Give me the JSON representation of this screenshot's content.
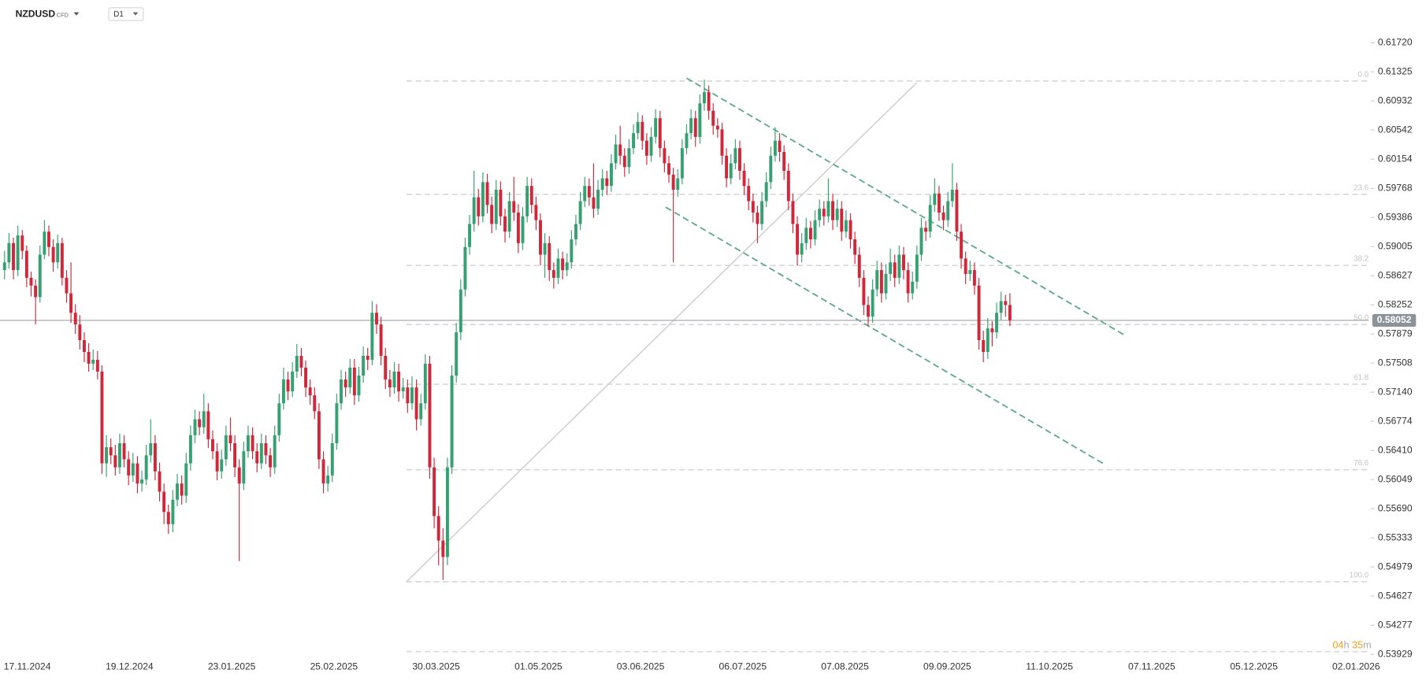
{
  "symbol": "NZDUSD",
  "instrument_type": "CFD",
  "timeframe": "D1",
  "timer": [
    "04",
    "h",
    "35",
    "m"
  ],
  "chart_data": {
    "type": "candlestick",
    "log_scale": true,
    "up_color": "#37a072",
    "down_color": "#d0283a",
    "ylim": [
      0.53875,
      0.6193
    ],
    "yticks": [
      {
        "value": 0.6172,
        "label": "0.61720"
      },
      0.61325,
      0.60932,
      0.60542,
      0.60154,
      0.59768,
      0.59386,
      0.59005,
      0.58627,
      0.58252,
      0.57879,
      0.57508,
      {
        "value": 0.5714,
        "label": "0.57140"
      },
      0.56774,
      {
        "value": 0.5641,
        "label": "0.56410"
      },
      0.56049,
      {
        "value": 0.5569,
        "label": "0.55690"
      },
      0.55333,
      0.54979,
      0.54627,
      0.54277,
      0.53929
    ],
    "x_labels": [
      "17.11.2024",
      "19.12.2024",
      "23.01.2025",
      "25.02.2025",
      "30.03.2025",
      "01.05.2025",
      "03.06.2025",
      "06.07.2025",
      "07.08.2025",
      "09.09.2025",
      "11.10.2025",
      "07.11.2025",
      "05.12.2025",
      "02.01.2026"
    ],
    "last_price": 0.58052,
    "fib_levels": [
      {
        "label": "0.0",
        "price": 0.612
      },
      {
        "label": "23.6",
        "price": 0.5969
      },
      {
        "label": "38.2",
        "price": 0.5876
      },
      {
        "label": "50.0",
        "price": 0.58
      },
      {
        "label": "61.8",
        "price": 0.5724
      },
      {
        "label": "78.6",
        "price": 0.5617
      },
      {
        "label": "100.0",
        "price": 0.548
      }
    ],
    "ohlc": [
      [
        0.587,
        0.5895,
        0.5858,
        0.588
      ],
      [
        0.588,
        0.5918,
        0.5872,
        0.5905
      ],
      [
        0.5905,
        0.5912,
        0.5858,
        0.587
      ],
      [
        0.587,
        0.5928,
        0.5862,
        0.5915
      ],
      [
        0.5915,
        0.5922,
        0.5884,
        0.5895
      ],
      [
        0.5895,
        0.5902,
        0.5848,
        0.586
      ],
      [
        0.586,
        0.5868,
        0.5836,
        0.585
      ],
      [
        0.585,
        0.5858,
        0.58,
        0.5835
      ],
      [
        0.5835,
        0.5902,
        0.5828,
        0.589
      ],
      [
        0.589,
        0.5935,
        0.5884,
        0.592
      ],
      [
        0.592,
        0.5928,
        0.5888,
        0.59
      ],
      [
        0.59,
        0.591,
        0.5868,
        0.588
      ],
      [
        0.588,
        0.5916,
        0.5872,
        0.5905
      ],
      [
        0.5905,
        0.5912,
        0.585,
        0.586
      ],
      [
        0.586,
        0.587,
        0.5828,
        0.584
      ],
      [
        0.584,
        0.588,
        0.5802,
        0.5815
      ],
      [
        0.5815,
        0.5826,
        0.5788,
        0.58
      ],
      [
        0.58,
        0.5812,
        0.5768,
        0.578
      ],
      [
        0.578,
        0.579,
        0.5752,
        0.5765
      ],
      [
        0.5765,
        0.5776,
        0.574,
        0.575
      ],
      [
        0.575,
        0.5768,
        0.5742,
        0.5755
      ],
      [
        0.5755,
        0.5766,
        0.573,
        0.574
      ],
      [
        0.574,
        0.5748,
        0.5612,
        0.5625
      ],
      [
        0.5625,
        0.566,
        0.5608,
        0.5645
      ],
      [
        0.5645,
        0.5656,
        0.5624,
        0.5635
      ],
      [
        0.5635,
        0.5648,
        0.561,
        0.562
      ],
      [
        0.562,
        0.5662,
        0.5612,
        0.565
      ],
      [
        0.565,
        0.566,
        0.562,
        0.563
      ],
      [
        0.563,
        0.564,
        0.5598,
        0.561
      ],
      [
        0.561,
        0.5638,
        0.5602,
        0.5625
      ],
      [
        0.5625,
        0.5634,
        0.5588,
        0.56
      ],
      [
        0.56,
        0.5616,
        0.559,
        0.5605
      ],
      [
        0.5605,
        0.5648,
        0.5598,
        0.5635
      ],
      [
        0.5635,
        0.568,
        0.5626,
        0.565
      ],
      [
        0.565,
        0.566,
        0.5604,
        0.5615
      ],
      [
        0.5615,
        0.5626,
        0.5578,
        0.559
      ],
      [
        0.559,
        0.56,
        0.555,
        0.5565
      ],
      [
        0.5565,
        0.5574,
        0.5538,
        0.555
      ],
      [
        0.555,
        0.5592,
        0.554,
        0.558
      ],
      [
        0.558,
        0.5612,
        0.5572,
        0.56
      ],
      [
        0.56,
        0.561,
        0.5574,
        0.5585
      ],
      [
        0.5585,
        0.5638,
        0.5576,
        0.5625
      ],
      [
        0.5625,
        0.5672,
        0.5616,
        0.566
      ],
      [
        0.566,
        0.5692,
        0.565,
        0.568
      ],
      [
        0.568,
        0.569,
        0.566,
        0.567
      ],
      [
        0.567,
        0.5712,
        0.5662,
        0.569
      ],
      [
        0.569,
        0.57,
        0.5644,
        0.5655
      ],
      [
        0.5655,
        0.5666,
        0.563,
        0.564
      ],
      [
        0.564,
        0.565,
        0.5604,
        0.5615
      ],
      [
        0.5615,
        0.5642,
        0.5606,
        0.563
      ],
      [
        0.563,
        0.5672,
        0.5622,
        0.566
      ],
      [
        0.566,
        0.5682,
        0.564,
        0.565
      ],
      [
        0.565,
        0.566,
        0.5608,
        0.562
      ],
      [
        0.562,
        0.563,
        0.5505,
        0.56
      ],
      [
        0.56,
        0.5652,
        0.5592,
        0.564
      ],
      [
        0.564,
        0.5672,
        0.5632,
        0.566
      ],
      [
        0.566,
        0.567,
        0.563,
        0.564
      ],
      [
        0.564,
        0.565,
        0.5614,
        0.5625
      ],
      [
        0.5625,
        0.5662,
        0.5618,
        0.565
      ],
      [
        0.565,
        0.566,
        0.5624,
        0.5635
      ],
      [
        0.5635,
        0.5644,
        0.5608,
        0.562
      ],
      [
        0.562,
        0.5672,
        0.5612,
        0.566
      ],
      [
        0.566,
        0.5712,
        0.5652,
        0.57
      ],
      [
        0.57,
        0.5745,
        0.5692,
        0.573
      ],
      [
        0.573,
        0.574,
        0.5704,
        0.5715
      ],
      [
        0.5715,
        0.5752,
        0.5708,
        0.574
      ],
      [
        0.574,
        0.5775,
        0.5732,
        0.576
      ],
      [
        0.576,
        0.577,
        0.5734,
        0.5745
      ],
      [
        0.5745,
        0.5754,
        0.5708,
        0.572
      ],
      [
        0.572,
        0.573,
        0.5698,
        0.571
      ],
      [
        0.571,
        0.572,
        0.568,
        0.569
      ],
      [
        0.569,
        0.57,
        0.5618,
        0.563
      ],
      [
        0.563,
        0.564,
        0.5588,
        0.56
      ],
      [
        0.56,
        0.5622,
        0.559,
        0.561
      ],
      [
        0.561,
        0.5662,
        0.5602,
        0.565
      ],
      [
        0.565,
        0.5712,
        0.5642,
        0.57
      ],
      [
        0.57,
        0.5742,
        0.5692,
        0.573
      ],
      [
        0.573,
        0.574,
        0.5708,
        0.572
      ],
      [
        0.572,
        0.5756,
        0.5712,
        0.5745
      ],
      [
        0.5745,
        0.5756,
        0.5698,
        0.571
      ],
      [
        0.571,
        0.5746,
        0.5702,
        0.5735
      ],
      [
        0.5735,
        0.5772,
        0.5726,
        0.576
      ],
      [
        0.576,
        0.577,
        0.5742,
        0.5755
      ],
      [
        0.5755,
        0.583,
        0.5748,
        0.5815
      ],
      [
        0.5815,
        0.5826,
        0.5788,
        0.58
      ],
      [
        0.58,
        0.581,
        0.5748,
        0.576
      ],
      [
        0.576,
        0.577,
        0.5718,
        0.573
      ],
      [
        0.573,
        0.5742,
        0.5708,
        0.572
      ],
      [
        0.572,
        0.5752,
        0.5712,
        0.574
      ],
      [
        0.574,
        0.575,
        0.5702,
        0.5715
      ],
      [
        0.5715,
        0.5732,
        0.5706,
        0.572
      ],
      [
        0.572,
        0.573,
        0.5688,
        0.57
      ],
      [
        0.57,
        0.5734,
        0.5692,
        0.572
      ],
      [
        0.572,
        0.573,
        0.5666,
        0.568
      ],
      [
        0.568,
        0.5712,
        0.5672,
        0.57
      ],
      [
        0.57,
        0.5762,
        0.5692,
        0.575
      ],
      [
        0.575,
        0.576,
        0.5606,
        0.562
      ],
      [
        0.562,
        0.5632,
        0.5545,
        0.556
      ],
      [
        0.556,
        0.5572,
        0.55,
        0.553
      ],
      [
        0.553,
        0.5545,
        0.5482,
        0.551
      ],
      [
        0.551,
        0.5632,
        0.55,
        0.562
      ],
      [
        0.562,
        0.5748,
        0.5612,
        0.5735
      ],
      [
        0.5735,
        0.5802,
        0.5726,
        0.579
      ],
      [
        0.579,
        0.5858,
        0.578,
        0.5845
      ],
      [
        0.5845,
        0.5912,
        0.5836,
        0.59
      ],
      [
        0.59,
        0.5942,
        0.589,
        0.593
      ],
      [
        0.593,
        0.6,
        0.592,
        0.5965
      ],
      [
        0.5965,
        0.5976,
        0.5928,
        0.594
      ],
      [
        0.594,
        0.5998,
        0.5932,
        0.5985
      ],
      [
        0.5985,
        0.5996,
        0.5944,
        0.5955
      ],
      [
        0.5955,
        0.5966,
        0.5918,
        0.593
      ],
      [
        0.593,
        0.5988,
        0.5922,
        0.5975
      ],
      [
        0.5975,
        0.5986,
        0.5928,
        0.594
      ],
      [
        0.594,
        0.595,
        0.5906,
        0.592
      ],
      [
        0.592,
        0.5972,
        0.5912,
        0.596
      ],
      [
        0.596,
        0.5992,
        0.5934,
        0.5945
      ],
      [
        0.5945,
        0.5956,
        0.5892,
        0.5905
      ],
      [
        0.5905,
        0.5952,
        0.5896,
        0.594
      ],
      [
        0.594,
        0.5992,
        0.5932,
        0.598
      ],
      [
        0.598,
        0.599,
        0.5944,
        0.5955
      ],
      [
        0.5955,
        0.5966,
        0.5922,
        0.5935
      ],
      [
        0.5935,
        0.5944,
        0.5876,
        0.589
      ],
      [
        0.589,
        0.5918,
        0.586,
        0.5905
      ],
      [
        0.5905,
        0.5914,
        0.5856,
        0.587
      ],
      [
        0.587,
        0.588,
        0.5846,
        0.586
      ],
      [
        0.586,
        0.5898,
        0.5852,
        0.5885
      ],
      [
        0.5885,
        0.5894,
        0.5858,
        0.587
      ],
      [
        0.587,
        0.5892,
        0.5862,
        0.588
      ],
      [
        0.588,
        0.5922,
        0.5872,
        0.591
      ],
      [
        0.591,
        0.5942,
        0.5902,
        0.593
      ],
      [
        0.593,
        0.5972,
        0.5922,
        0.596
      ],
      [
        0.596,
        0.5992,
        0.5952,
        0.598
      ],
      [
        0.598,
        0.599,
        0.5954,
        0.5965
      ],
      [
        0.5965,
        0.601,
        0.5938,
        0.595
      ],
      [
        0.595,
        0.5988,
        0.5942,
        0.5975
      ],
      [
        0.5975,
        0.6002,
        0.5966,
        0.599
      ],
      [
        0.599,
        0.6,
        0.5968,
        0.598
      ],
      [
        0.598,
        0.6022,
        0.5972,
        0.601
      ],
      [
        0.601,
        0.6048,
        0.6002,
        0.6035
      ],
      [
        0.6035,
        0.606,
        0.6008,
        0.602
      ],
      [
        0.602,
        0.603,
        0.5992,
        0.6005
      ],
      [
        0.6005,
        0.6042,
        0.5996,
        0.603
      ],
      [
        0.603,
        0.6062,
        0.6022,
        0.605
      ],
      [
        0.605,
        0.6078,
        0.6042,
        0.6065
      ],
      [
        0.6065,
        0.6074,
        0.6028,
        0.604
      ],
      [
        0.604,
        0.605,
        0.6008,
        0.602
      ],
      [
        0.602,
        0.6058,
        0.6012,
        0.6045
      ],
      [
        0.6045,
        0.6082,
        0.6036,
        0.607
      ],
      [
        0.607,
        0.608,
        0.6018,
        0.603
      ],
      [
        0.603,
        0.604,
        0.5998,
        0.601
      ],
      [
        0.601,
        0.602,
        0.5984,
        0.5995
      ],
      [
        0.5995,
        0.6004,
        0.588,
        0.5975
      ],
      [
        0.5975,
        0.6002,
        0.5966,
        0.599
      ],
      [
        0.599,
        0.6042,
        0.5982,
        0.603
      ],
      [
        0.603,
        0.6062,
        0.6022,
        0.605
      ],
      [
        0.605,
        0.6082,
        0.6042,
        0.607
      ],
      [
        0.607,
        0.608,
        0.6032,
        0.6045
      ],
      [
        0.6045,
        0.6102,
        0.6036,
        0.609
      ],
      [
        0.609,
        0.6122,
        0.608,
        0.6105
      ],
      [
        0.6105,
        0.6114,
        0.6068,
        0.608
      ],
      [
        0.608,
        0.609,
        0.6048,
        0.606
      ],
      [
        0.606,
        0.607,
        0.6044,
        0.6055
      ],
      [
        0.6055,
        0.6064,
        0.6008,
        0.602
      ],
      [
        0.602,
        0.603,
        0.5978,
        0.599
      ],
      [
        0.599,
        0.6022,
        0.5982,
        0.601
      ],
      [
        0.601,
        0.6042,
        0.6002,
        0.603
      ],
      [
        0.603,
        0.604,
        0.5988,
        0.6
      ],
      [
        0.6,
        0.601,
        0.5968,
        0.598
      ],
      [
        0.598,
        0.599,
        0.5948,
        0.596
      ],
      [
        0.596,
        0.597,
        0.5932,
        0.5945
      ],
      [
        0.5945,
        0.5954,
        0.5905,
        0.593
      ],
      [
        0.593,
        0.5972,
        0.5922,
        0.596
      ],
      [
        0.596,
        0.5998,
        0.5952,
        0.5985
      ],
      [
        0.5985,
        0.6032,
        0.5976,
        0.602
      ],
      [
        0.602,
        0.6058,
        0.6012,
        0.604
      ],
      [
        0.604,
        0.605,
        0.6012,
        0.6025
      ],
      [
        0.6025,
        0.6034,
        0.5988,
        0.6
      ],
      [
        0.6,
        0.601,
        0.5948,
        0.596
      ],
      [
        0.596,
        0.597,
        0.5918,
        0.593
      ],
      [
        0.593,
        0.594,
        0.5876,
        0.589
      ],
      [
        0.589,
        0.5918,
        0.588,
        0.5905
      ],
      [
        0.5905,
        0.5938,
        0.5896,
        0.5925
      ],
      [
        0.5925,
        0.5934,
        0.5898,
        0.591
      ],
      [
        0.591,
        0.5948,
        0.5902,
        0.5935
      ],
      [
        0.5935,
        0.5962,
        0.5926,
        0.595
      ],
      [
        0.595,
        0.596,
        0.5928,
        0.594
      ],
      [
        0.594,
        0.599,
        0.5932,
        0.596
      ],
      [
        0.596,
        0.597,
        0.5922,
        0.5935
      ],
      [
        0.5935,
        0.5962,
        0.5926,
        0.595
      ],
      [
        0.595,
        0.596,
        0.5908,
        0.592
      ],
      [
        0.592,
        0.5948,
        0.5912,
        0.5935
      ],
      [
        0.5935,
        0.5944,
        0.5898,
        0.591
      ],
      [
        0.591,
        0.592,
        0.5878,
        0.589
      ],
      [
        0.589,
        0.59,
        0.5848,
        0.586
      ],
      [
        0.586,
        0.587,
        0.5812,
        0.5825
      ],
      [
        0.5825,
        0.5836,
        0.5798,
        0.581
      ],
      [
        0.581,
        0.5858,
        0.5802,
        0.5845
      ],
      [
        0.5845,
        0.5882,
        0.5836,
        0.587
      ],
      [
        0.587,
        0.588,
        0.5828,
        0.584
      ],
      [
        0.584,
        0.5878,
        0.5832,
        0.5865
      ],
      [
        0.5865,
        0.5898,
        0.5856,
        0.588
      ],
      [
        0.588,
        0.589,
        0.5848,
        0.586
      ],
      [
        0.586,
        0.5902,
        0.5852,
        0.589
      ],
      [
        0.589,
        0.59,
        0.5858,
        0.587
      ],
      [
        0.587,
        0.588,
        0.5828,
        0.584
      ],
      [
        0.584,
        0.5868,
        0.5832,
        0.5855
      ],
      [
        0.5855,
        0.5902,
        0.5846,
        0.589
      ],
      [
        0.589,
        0.5938,
        0.5882,
        0.5925
      ],
      [
        0.5925,
        0.5934,
        0.5908,
        0.592
      ],
      [
        0.592,
        0.5968,
        0.5912,
        0.5955
      ],
      [
        0.5955,
        0.599,
        0.5946,
        0.597
      ],
      [
        0.597,
        0.598,
        0.5934,
        0.5945
      ],
      [
        0.5945,
        0.5954,
        0.5922,
        0.5935
      ],
      [
        0.5935,
        0.5972,
        0.5926,
        0.596
      ],
      [
        0.596,
        0.601,
        0.5952,
        0.5975
      ],
      [
        0.5975,
        0.5984,
        0.5908,
        0.592
      ],
      [
        0.592,
        0.593,
        0.5872,
        0.5885
      ],
      [
        0.5885,
        0.5894,
        0.5852,
        0.5865
      ],
      [
        0.5865,
        0.5882,
        0.5856,
        0.587
      ],
      [
        0.587,
        0.588,
        0.5838,
        0.585
      ],
      [
        0.585,
        0.586,
        0.5768,
        0.578
      ],
      [
        0.578,
        0.5792,
        0.5752,
        0.5765
      ],
      [
        0.5765,
        0.5808,
        0.5756,
        0.5795
      ],
      [
        0.5795,
        0.5804,
        0.5772,
        0.579
      ],
      [
        0.579,
        0.5828,
        0.5782,
        0.5815
      ],
      [
        0.5815,
        0.5842,
        0.5806,
        0.583
      ],
      [
        0.583,
        0.5838,
        0.581,
        0.5825
      ],
      [
        0.5825,
        0.584,
        0.5798,
        0.58052
      ]
    ]
  }
}
